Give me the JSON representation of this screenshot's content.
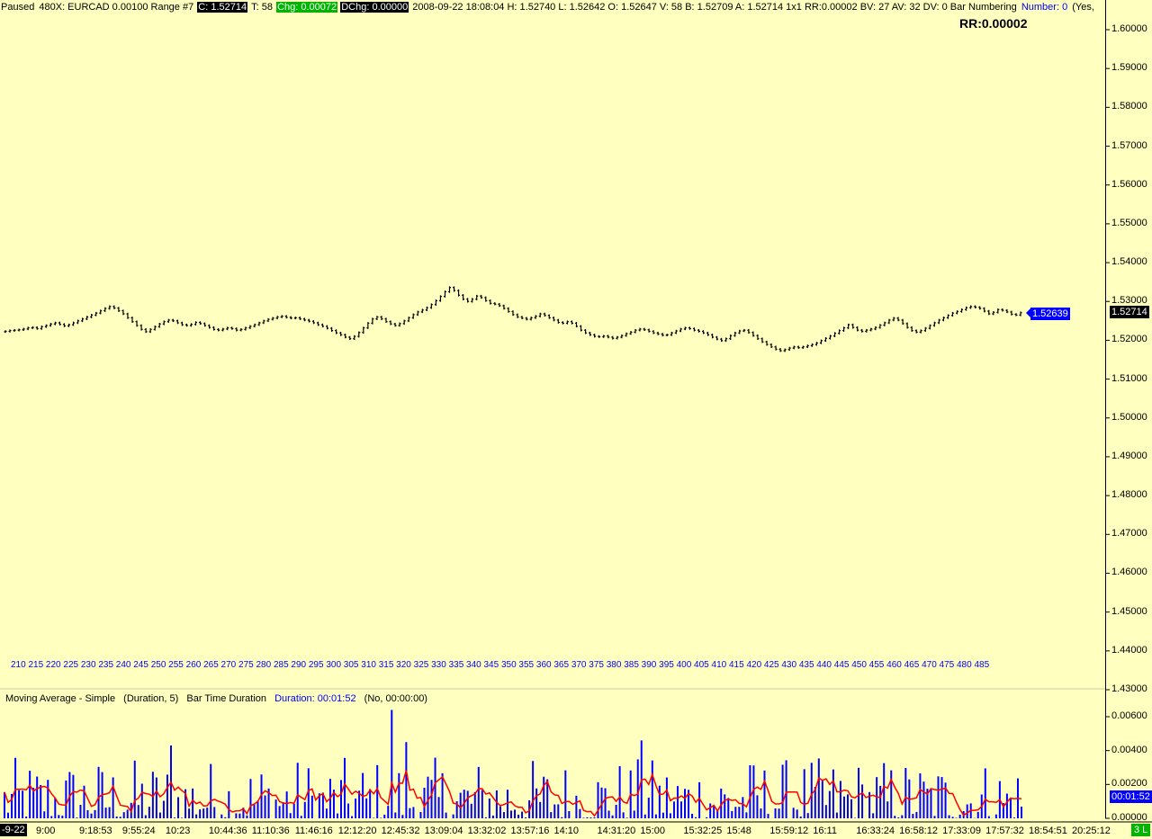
{
  "header": {
    "status": "Paused",
    "chart_label": "480X: EURCAD  0.00100 Range  #7",
    "close": "C: 1.52714",
    "ticks": "T: 58",
    "change": "Chg: 0.00072",
    "dchange": "DChg: 0.00000",
    "details": "2008-09-22 18:08:04 H: 1.52740 L: 1.52642 O: 1.52647 V: 58 B: 1.52709 A: 1.52714 1x1 RR:0.00002 BV: 27 AV: 32 DV: 0 Bar Numbering",
    "number": "Number: 0",
    "tail": "(Yes,"
  },
  "rr_label": "RR:0.00002",
  "price_axis": [
    "1.60000",
    "1.59000",
    "1.58000",
    "1.57000",
    "1.56000",
    "1.55000",
    "1.54000",
    "1.53000",
    "1.52000",
    "1.51000",
    "1.50000",
    "1.49000",
    "1.48000",
    "1.47000",
    "1.46000",
    "1.45000",
    "1.44000",
    "1.43000"
  ],
  "last_price": "1.52714",
  "marker_price": "1.52639",
  "bar_numbers": "210 215 220 225 230 235 240 245 250 255 260 265 270 275 280 285 290 295 300 305 310 315 320 325 330 335 340 345 350 355 360 365 370 375 380 385 390 395 400 405 410 415 420 425 430 435 440 445 450 455 460 465 470 475 480 485",
  "indicator": {
    "name": "Moving Average - Simple",
    "params": "(Duration, 5)",
    "label": "Bar Time Duration",
    "duration": "Duration: 00:01:52",
    "extra": "(No, 00:00:00)",
    "axis": [
      "0.00600",
      "0.00400",
      "0.00200",
      "0.00000"
    ],
    "current": "00:01:52",
    "colors": {
      "histogram": "#0000ff",
      "average": "#ff0000"
    }
  },
  "time_axis": {
    "date": "-9-22",
    "labels": [
      "9:00",
      "9:18:53",
      "9:55:24",
      "10:23",
      "10:44:36",
      "11:10:36",
      "11:46:16",
      "12:12:20",
      "12:45:32",
      "13:09:04",
      "13:32:02",
      "13:57:16",
      "14:10",
      "14:31:20",
      "15:00",
      "15:32:25",
      "15:48",
      "15:59:12",
      "16:11",
      "16:33:24",
      "16:58:12",
      "17:33:09",
      "17:57:32",
      "18:54:51",
      "20:25:12"
    ],
    "badge": "3 L"
  },
  "chart_data": {
    "type": "ohlc",
    "symbol": "EURCAD",
    "ylim": [
      1.43,
      1.605
    ],
    "bar_range": [
      207,
      488
    ],
    "closes": [
      1.5223,
      1.5225,
      1.5226,
      1.5227,
      1.5229,
      1.5232,
      1.5233,
      1.523,
      1.5235,
      1.5238,
      1.5242,
      1.5245,
      1.5241,
      1.5237,
      1.524,
      1.5245,
      1.525,
      1.5255,
      1.526,
      1.5265,
      1.527,
      1.5276,
      1.5282,
      1.5287,
      1.5283,
      1.5276,
      1.5268,
      1.5258,
      1.5248,
      1.5238,
      1.5228,
      1.5222,
      1.5228,
      1.5235,
      1.5242,
      1.5248,
      1.5252,
      1.525,
      1.5245,
      1.524,
      1.5238,
      1.5241,
      1.5246,
      1.5243,
      1.5238,
      1.5233,
      1.5228,
      1.5226,
      1.5229,
      1.5232,
      1.523,
      1.5226,
      1.5228,
      1.5232,
      1.5236,
      1.524,
      1.5245,
      1.525,
      1.5254,
      1.5257,
      1.526,
      1.5262,
      1.5259,
      1.5257,
      1.5258,
      1.5255,
      1.5252,
      1.5249,
      1.5245,
      1.524,
      1.5236,
      1.5231,
      1.5225,
      1.5219,
      1.5214,
      1.5208,
      1.5204,
      1.521,
      1.522,
      1.5232,
      1.5244,
      1.5255,
      1.526,
      1.5255,
      1.5248,
      1.5242,
      1.5238,
      1.5243,
      1.525,
      1.5258,
      1.5266,
      1.5273,
      1.5278,
      1.5284,
      1.5292,
      1.5302,
      1.5313,
      1.5325,
      1.5336,
      1.5328,
      1.5316,
      1.5306,
      1.53,
      1.5306,
      1.5314,
      1.531,
      1.5302,
      1.5295,
      1.5293,
      1.5289,
      1.5282,
      1.5274,
      1.5266,
      1.526,
      1.5257,
      1.5254,
      1.5258,
      1.5262,
      1.5268,
      1.5264,
      1.5258,
      1.5252,
      1.5246,
      1.5244,
      1.5248,
      1.5244,
      1.5236,
      1.5226,
      1.5219,
      1.5214,
      1.521,
      1.5209,
      1.5211,
      1.5208,
      1.5205,
      1.5208,
      1.5212,
      1.5217,
      1.5221,
      1.5226,
      1.5229,
      1.5227,
      1.5223,
      1.5219,
      1.5216,
      1.5213,
      1.5214,
      1.5219,
      1.5224,
      1.5229,
      1.5232,
      1.523,
      1.5226,
      1.5223,
      1.5219,
      1.5214,
      1.5208,
      1.5203,
      1.5199,
      1.5204,
      1.5212,
      1.5219,
      1.5224,
      1.5226,
      1.522,
      1.5212,
      1.5204,
      1.5196,
      1.5189,
      1.5183,
      1.5177,
      1.5173,
      1.5176,
      1.518,
      1.5183,
      1.5181,
      1.5183,
      1.5186,
      1.5189,
      1.5193,
      1.5199,
      1.5205,
      1.5211,
      1.5218,
      1.5225,
      1.5232,
      1.524,
      1.5233,
      1.5226,
      1.5223,
      1.5226,
      1.5229,
      1.5233,
      1.5239,
      1.5245,
      1.5252,
      1.5257,
      1.5252,
      1.5243,
      1.5233,
      1.5225,
      1.5221,
      1.5225,
      1.5231,
      1.5238,
      1.5245,
      1.5252,
      1.5258,
      1.5264,
      1.527,
      1.5274,
      1.5279,
      1.5284,
      1.5287,
      1.5285,
      1.5282,
      1.5275,
      1.5268,
      1.5272,
      1.5279,
      1.5277,
      1.5273,
      1.5267,
      1.5265,
      1.5271
    ]
  }
}
